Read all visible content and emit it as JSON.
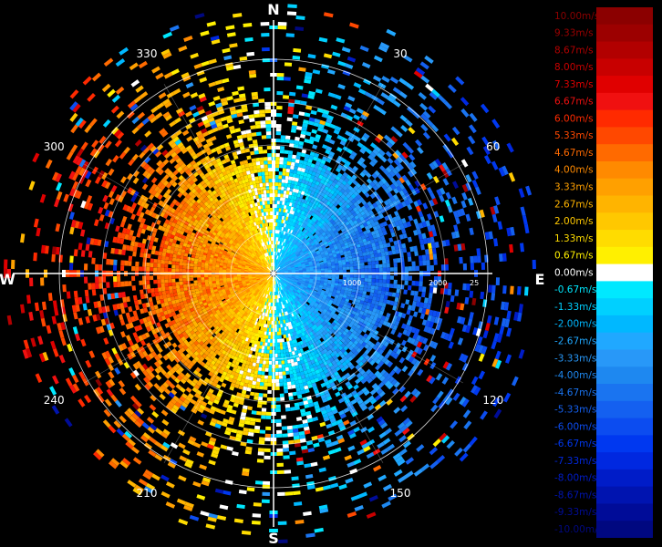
{
  "display": {
    "cardinals": {
      "north": "N",
      "south": "S",
      "east": "E",
      "west": "W"
    },
    "azimuth_labels": [
      {
        "deg": 30,
        "text": "30"
      },
      {
        "deg": 60,
        "text": "60"
      },
      {
        "deg": 120,
        "text": "120"
      },
      {
        "deg": 150,
        "text": "150"
      },
      {
        "deg": 210,
        "text": "210"
      },
      {
        "deg": 240,
        "text": "240"
      },
      {
        "deg": 300,
        "text": "300"
      },
      {
        "deg": 330,
        "text": "330"
      }
    ],
    "range_labels": [
      "1000",
      "2000",
      "25"
    ],
    "background_color": "#000000",
    "grid_color": "#ffffff"
  },
  "legend": {
    "title": "",
    "entries": [
      {
        "label": "10.00m/s",
        "value": 10.0,
        "color": "#8b0000"
      },
      {
        "label": "9.33m/s",
        "value": 9.33,
        "color": "#9c0000"
      },
      {
        "label": "8.67m/s",
        "value": 8.67,
        "color": "#b20000"
      },
      {
        "label": "8.00m/s",
        "value": 8.0,
        "color": "#c80000"
      },
      {
        "label": "7.33m/s",
        "value": 7.33,
        "color": "#e00000"
      },
      {
        "label": "6.67m/s",
        "value": 6.67,
        "color": "#f01010"
      },
      {
        "label": "6.00m/s",
        "value": 6.0,
        "color": "#ff2a00"
      },
      {
        "label": "5.33m/s",
        "value": 5.33,
        "color": "#ff4800"
      },
      {
        "label": "4.67m/s",
        "value": 4.67,
        "color": "#ff6a00"
      },
      {
        "label": "4.00m/s",
        "value": 4.0,
        "color": "#ff8a00"
      },
      {
        "label": "3.33m/s",
        "value": 3.33,
        "color": "#ffa000"
      },
      {
        "label": "2.67m/s",
        "value": 2.67,
        "color": "#ffb400"
      },
      {
        "label": "2.00m/s",
        "value": 2.0,
        "color": "#ffc800"
      },
      {
        "label": "1.33m/s",
        "value": 1.33,
        "color": "#ffdc00"
      },
      {
        "label": "0.67m/s",
        "value": 0.67,
        "color": "#fff000"
      },
      {
        "label": "0.00m/s",
        "value": 0.0,
        "color": "#ffffff"
      },
      {
        "label": "-0.67m/s",
        "value": -0.67,
        "color": "#00e8ff"
      },
      {
        "label": "-1.33m/s",
        "value": -1.33,
        "color": "#00d0ff"
      },
      {
        "label": "-2.00m/s",
        "value": -2.0,
        "color": "#00b8ff"
      },
      {
        "label": "-2.67m/s",
        "value": -2.67,
        "color": "#20a8ff"
      },
      {
        "label": "-3.33m/s",
        "value": -3.33,
        "color": "#2898f8"
      },
      {
        "label": "-4.00m/s",
        "value": -4.0,
        "color": "#1e88f0"
      },
      {
        "label": "-4.67m/s",
        "value": -4.67,
        "color": "#1a74f0"
      },
      {
        "label": "-5.33m/s",
        "value": -5.33,
        "color": "#1460f0"
      },
      {
        "label": "-6.00m/s",
        "value": -6.0,
        "color": "#0c4cf0"
      },
      {
        "label": "-6.67m/s",
        "value": -6.67,
        "color": "#0038f0"
      },
      {
        "label": "-7.33m/s",
        "value": -7.33,
        "color": "#0028e0"
      },
      {
        "label": "-8.00m/s",
        "value": -8.0,
        "color": "#001cc8"
      },
      {
        "label": "-8.67m/s",
        "value": -8.67,
        "color": "#0014b0"
      },
      {
        "label": "-9.33m/s",
        "value": -9.33,
        "color": "#000c98"
      },
      {
        "label": "-10.00m/s",
        "value": -10.0,
        "color": "#000880"
      }
    ]
  }
}
